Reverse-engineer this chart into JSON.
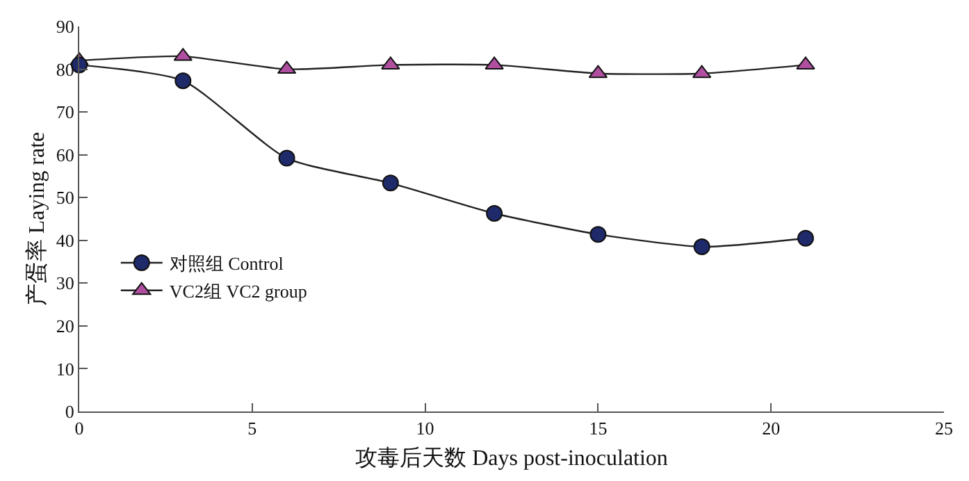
{
  "chart_data": {
    "type": "line",
    "xlabel": "攻毒后天数 Days post-inoculation",
    "ylabel": "产蛋率 Laying rate",
    "x": [
      0,
      3,
      6,
      9,
      12,
      15,
      18,
      21
    ],
    "series": [
      {
        "name": "对照组 Control",
        "color": "#1f2a6b",
        "marker": "circle",
        "values": [
          81,
          77.3,
          59.2,
          53.4,
          46.3,
          41.4,
          38.5,
          40.5
        ]
      },
      {
        "name": "VC2组 VC2 group",
        "color": "#b04fa0",
        "marker": "triangle",
        "values": [
          82,
          83,
          80,
          81,
          81,
          79,
          79,
          81
        ]
      }
    ],
    "xlim": [
      0,
      25
    ],
    "xticks": [
      0,
      5,
      10,
      15,
      20,
      25
    ],
    "ylim": [
      0,
      90
    ],
    "yticks": [
      0,
      10,
      20,
      30,
      40,
      50,
      60,
      70,
      80,
      90
    ],
    "grid": false,
    "legend": "left",
    "line_style": "solid"
  }
}
